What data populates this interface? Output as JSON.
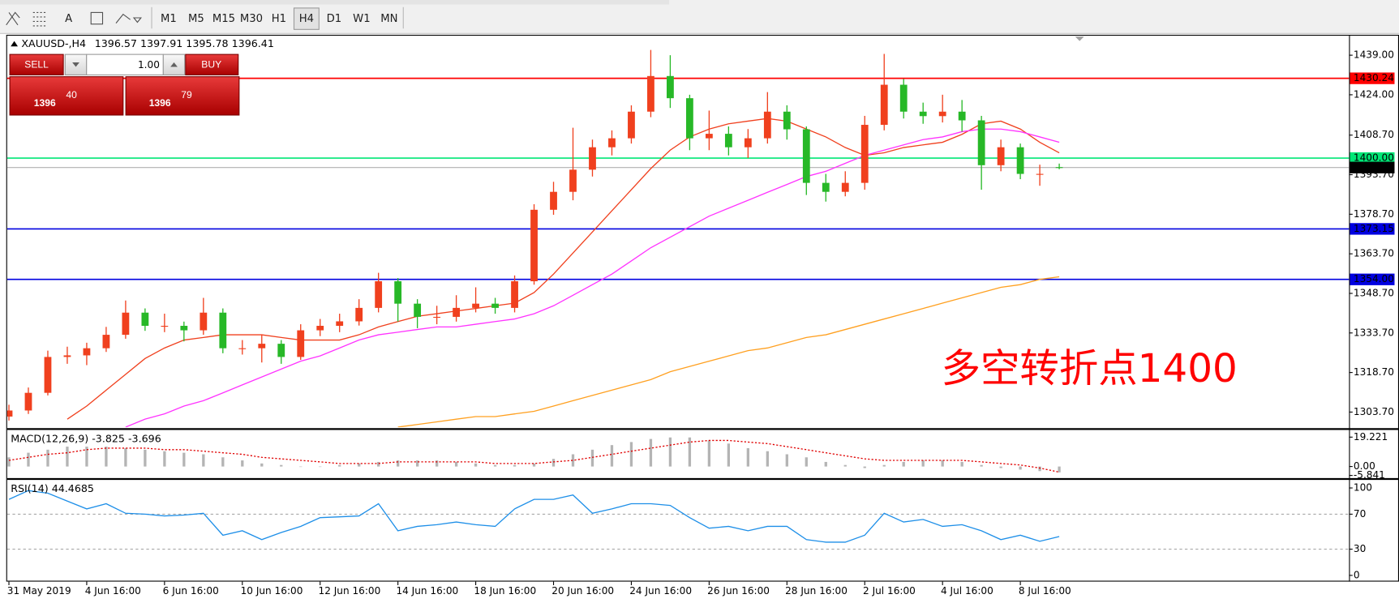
{
  "toolbar": {
    "text_tool": "A",
    "timeframes": [
      "M1",
      "M5",
      "M15",
      "M30",
      "H1",
      "H4",
      "D1",
      "W1",
      "MN"
    ],
    "active": "H4"
  },
  "trade_panel": {
    "sell": "SELL",
    "buy": "BUY",
    "lots": "1.00",
    "bid_big": "1396",
    "bid_small": "40",
    "ask_big": "1396",
    "ask_small": "79"
  },
  "chart_data": [
    {
      "type": "candlestick",
      "title": "XAUUSD-,H4",
      "annotation": "多空转折点1400",
      "categories": [
        "31 May 2019",
        null,
        null,
        null,
        "4 Jun 16:00",
        null,
        null,
        null,
        "6 Jun 16:00",
        null,
        null,
        null,
        "10 Jun 16:00",
        null,
        null,
        null,
        "12 Jun 16:00",
        null,
        null,
        null,
        "14 Jun 16:00",
        null,
        null,
        null,
        "18 Jun 16:00",
        null,
        null,
        null,
        "20 Jun 16:00",
        null,
        null,
        null,
        "24 Jun 16:00",
        null,
        null,
        null,
        "26 Jun 16:00",
        null,
        null,
        null,
        "28 Jun 16:00",
        null,
        null,
        null,
        "2 Jul 16:00",
        null,
        null,
        null,
        "4 Jul 16:00",
        null,
        null,
        null,
        "8 Jul 16:00",
        null,
        null
      ],
      "open": [
        1302.0,
        1304.3,
        1311.0,
        1324.6,
        1325.2,
        1327.9,
        1333.0,
        1341.4,
        1336.4,
        1336.4,
        1334.7,
        1341.4,
        1327.9,
        1327.9,
        1329.6,
        1324.6,
        1334.7,
        1336.4,
        1338.1,
        1343.2,
        1353.3,
        1344.8,
        1339.8,
        1339.8,
        1343.2,
        1344.8,
        1343.2,
        1353.3,
        1380.4,
        1387.2,
        1395.6,
        1404.1,
        1407.5,
        1417.6,
        1431.1,
        1422.7,
        1407.5,
        1409.2,
        1404.1,
        1407.5,
        1417.6,
        1410.9,
        1390.6,
        1387.2,
        1390.6,
        1412.6,
        1427.8,
        1417.6,
        1415.9,
        1417.6,
        1414.3,
        1397.3,
        1404.1,
        1394.0,
        1396.57
      ],
      "high": [
        1306.5,
        1313.0,
        1327.0,
        1328.5,
        1330.0,
        1336.0,
        1346.0,
        1343.0,
        1341.0,
        1338.0,
        1347.0,
        1343.0,
        1331.0,
        1333.0,
        1331.0,
        1337.0,
        1339.0,
        1341.0,
        1346.5,
        1356.5,
        1354.5,
        1346.5,
        1344.0,
        1348.0,
        1351.0,
        1347.0,
        1355.5,
        1382.5,
        1391.0,
        1411.5,
        1407.0,
        1410.5,
        1420.0,
        1441.0,
        1439.0,
        1424.0,
        1418.0,
        1412.0,
        1411.0,
        1425.0,
        1420.0,
        1412.0,
        1394.0,
        1395.0,
        1416.0,
        1439.5,
        1430.0,
        1421.0,
        1424.0,
        1422.0,
        1416.0,
        1407.0,
        1405.5,
        1397.5,
        1397.91
      ],
      "low": [
        1300.5,
        1303.0,
        1310.0,
        1322.0,
        1321.5,
        1326.5,
        1331.5,
        1334.5,
        1334.0,
        1330.5,
        1333.0,
        1326.0,
        1325.5,
        1322.5,
        1322.0,
        1323.5,
        1332.5,
        1334.0,
        1336.5,
        1341.5,
        1338.0,
        1335.5,
        1337.0,
        1338.0,
        1341.5,
        1341.0,
        1341.5,
        1352.0,
        1378.5,
        1384.0,
        1393.0,
        1401.0,
        1405.5,
        1415.5,
        1419.0,
        1403.0,
        1403.0,
        1401.0,
        1400.0,
        1405.5,
        1407.0,
        1386.0,
        1383.5,
        1385.5,
        1388.0,
        1410.5,
        1415.0,
        1413.0,
        1413.5,
        1410.0,
        1388.0,
        1395.0,
        1392.0,
        1389.5,
        1395.78
      ],
      "close": [
        1304.3,
        1311.0,
        1324.6,
        1325.2,
        1327.9,
        1333.0,
        1341.4,
        1336.4,
        1336.4,
        1334.7,
        1341.4,
        1327.9,
        1327.9,
        1329.6,
        1324.6,
        1334.7,
        1336.4,
        1338.1,
        1343.2,
        1353.3,
        1344.8,
        1339.8,
        1339.8,
        1343.2,
        1344.8,
        1343.2,
        1353.3,
        1380.4,
        1387.2,
        1395.6,
        1404.1,
        1407.5,
        1417.6,
        1431.1,
        1422.7,
        1407.5,
        1409.2,
        1404.1,
        1407.5,
        1417.6,
        1410.9,
        1390.6,
        1387.2,
        1390.6,
        1412.6,
        1427.8,
        1417.6,
        1415.9,
        1417.6,
        1414.3,
        1397.3,
        1404.1,
        1394.0,
        1394.0,
        1396.41
      ],
      "up_color": "#f0401e",
      "down_color": "#27b827",
      "series": [
        {
          "color": "#f0401e",
          "values": [
            null,
            null,
            null,
            1301,
            1306,
            1312,
            1318,
            1324,
            1328,
            1331,
            1332,
            1333,
            1333,
            1333,
            1332,
            1331,
            1331,
            1331,
            1333,
            1336,
            1338,
            1340,
            1341,
            1342,
            1343,
            1344,
            1345,
            1349,
            1356,
            1364,
            1372,
            1380,
            1388,
            1396,
            1403,
            1408,
            1411,
            1413,
            1414,
            1415,
            1414,
            1411,
            1408,
            1404,
            1401,
            1402,
            1404,
            1405,
            1406,
            1409,
            1413,
            1414,
            1411,
            1406,
            1402
          ]
        },
        {
          "color": "#ff33ff",
          "values": [
            null,
            null,
            null,
            null,
            null,
            null,
            1298,
            1301,
            1303,
            1306,
            1308,
            1311,
            1314,
            1317,
            1320,
            1323,
            1325,
            1328,
            1331,
            1333,
            1334,
            1335,
            1336,
            1336,
            1337,
            1338,
            1339,
            1341,
            1344,
            1348,
            1352,
            1356,
            1361,
            1366,
            1370,
            1374,
            1378,
            1381,
            1384,
            1387,
            1390,
            1393,
            1395,
            1398,
            1401,
            1403,
            1405,
            1407,
            1408,
            1410,
            1411,
            1411,
            1410,
            1408,
            1406
          ]
        },
        {
          "color": "#ffa020",
          "values": [
            null,
            null,
            null,
            null,
            null,
            null,
            null,
            null,
            null,
            null,
            null,
            null,
            null,
            null,
            null,
            null,
            null,
            null,
            null,
            null,
            1298,
            1299,
            1300,
            1301,
            1302,
            1302,
            1303,
            1304,
            1306,
            1308,
            1310,
            1312,
            1314,
            1316,
            1319,
            1321,
            1323,
            1325,
            1327,
            1328,
            1330,
            1332,
            1333,
            1335,
            1337,
            1339,
            1341,
            1343,
            1345,
            1347,
            1349,
            1351,
            1352,
            1354,
            1355
          ]
        }
      ],
      "hlines": [
        {
          "value": 1430.24,
          "color": "#ff0000"
        },
        {
          "value": 1400,
          "label": "1400.00",
          "color": "#00e676"
        },
        {
          "value": 1396.41,
          "color": "#b0b0b0",
          "label_color": "#000000"
        },
        {
          "value": 1373.15,
          "color": "#0000e0"
        },
        {
          "value": 1354,
          "label": "1354.00",
          "color": "#0000e0"
        }
      ],
      "ylim": [
        1297.6,
        1446.4
      ],
      "yticks": [
        {
          "value": 1439,
          "label": "1439.00"
        },
        {
          "value": 1424,
          "label": "1424.00"
        },
        {
          "value": 1408.7,
          "label": "1408.70"
        },
        {
          "value": 1393.7,
          "label": "1393.70"
        },
        {
          "value": 1378.7,
          "label": "1378.70"
        },
        {
          "value": 1363.7,
          "label": "1363.70"
        },
        {
          "value": 1348.7,
          "label": "1348.70"
        },
        {
          "value": 1333.7,
          "label": "1333.70"
        },
        {
          "value": 1318.7,
          "label": "1318.70"
        },
        {
          "value": 1303.7,
          "label": "1303.70"
        }
      ]
    },
    {
      "type": "macd",
      "title": "MACD(12,26,9)",
      "series": [
        {
          "color": "#b4b4b4",
          "values": [
            6,
            9,
            11,
            13,
            13,
            13,
            12,
            11,
            10,
            9,
            8,
            6,
            4,
            2,
            1,
            0,
            0,
            1,
            2,
            3,
            4,
            4,
            4,
            3,
            2,
            1,
            1,
            2,
            5,
            8,
            11,
            14,
            16,
            18,
            19,
            19,
            17,
            15,
            12,
            10,
            8,
            6,
            3,
            1,
            -1,
            1,
            3,
            4,
            4,
            3,
            1,
            -1,
            -2,
            -3,
            -3.825
          ]
        },
        {
          "color": "#e00000",
          "values": [
            4,
            6,
            8,
            9,
            11,
            12,
            12,
            12,
            11,
            11,
            10,
            9,
            8,
            6,
            5,
            4,
            3,
            2,
            2,
            2,
            3,
            3,
            3,
            3,
            3,
            2,
            2,
            2,
            3,
            4,
            6,
            8,
            10,
            12,
            14,
            16,
            17,
            17,
            16,
            15,
            13,
            11,
            9,
            7,
            5,
            4,
            4,
            4,
            4,
            4,
            3,
            2,
            1,
            -1,
            -3.696
          ]
        }
      ],
      "ylim": [
        -7.0,
        23.9
      ],
      "yticks": [
        19.221,
        {
          "value": 0,
          "label": "0.00"
        },
        -5.841
      ]
    },
    {
      "type": "line",
      "title": "RSI(14)",
      "series": [
        {
          "color": "#1e8fe8",
          "values": [
            87,
            97,
            94,
            85,
            76,
            82,
            71,
            70,
            68,
            69,
            71,
            46,
            51,
            41,
            49,
            56,
            66,
            67,
            68,
            82,
            51,
            56,
            58,
            61,
            58,
            56,
            76,
            87,
            87,
            92,
            71,
            76,
            82,
            82,
            80,
            66,
            54,
            56,
            51,
            56,
            56,
            41,
            38,
            38,
            46,
            71,
            61,
            64,
            56,
            58,
            51,
            41,
            46,
            39,
            44.4685
          ]
        }
      ],
      "levels": [
        70,
        30
      ],
      "ylim": [
        -7.1,
        109.2
      ],
      "yticks": [
        100,
        70,
        30,
        0
      ]
    }
  ]
}
